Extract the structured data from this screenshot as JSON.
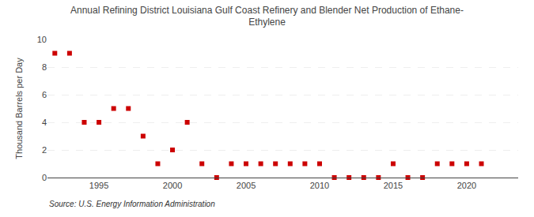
{
  "chart_data": {
    "type": "scatter",
    "title": "Annual Refining District Louisiana Gulf Coast Refinery and Blender Net Production of Ethane-\nEthylene",
    "ylabel": "Thousand Barrels per Day",
    "source": "Source: U.S. Energy Information Administration",
    "x": [
      1992,
      1993,
      1994,
      1995,
      1996,
      1997,
      1998,
      1999,
      2000,
      2001,
      2002,
      2003,
      2004,
      2005,
      2006,
      2007,
      2008,
      2009,
      2010,
      2011,
      2012,
      2013,
      2014,
      2015,
      2016,
      2017,
      2018,
      2019,
      2020,
      2021
    ],
    "values": [
      9,
      9,
      4,
      4,
      5,
      5,
      3,
      1,
      2,
      4,
      1,
      0,
      1,
      1,
      1,
      1,
      1,
      1,
      1,
      0,
      0,
      0,
      0,
      1,
      0,
      0,
      1,
      1,
      1,
      1
    ],
    "color": "#cc0000",
    "marker": "square",
    "xlim": [
      1991.5,
      2023.5
    ],
    "xticks": [
      1995,
      2000,
      2005,
      2010,
      2015,
      2020
    ],
    "ylim": [
      0,
      10
    ],
    "yticks": [
      0,
      2,
      4,
      6,
      8,
      10
    ],
    "grid": true
  }
}
